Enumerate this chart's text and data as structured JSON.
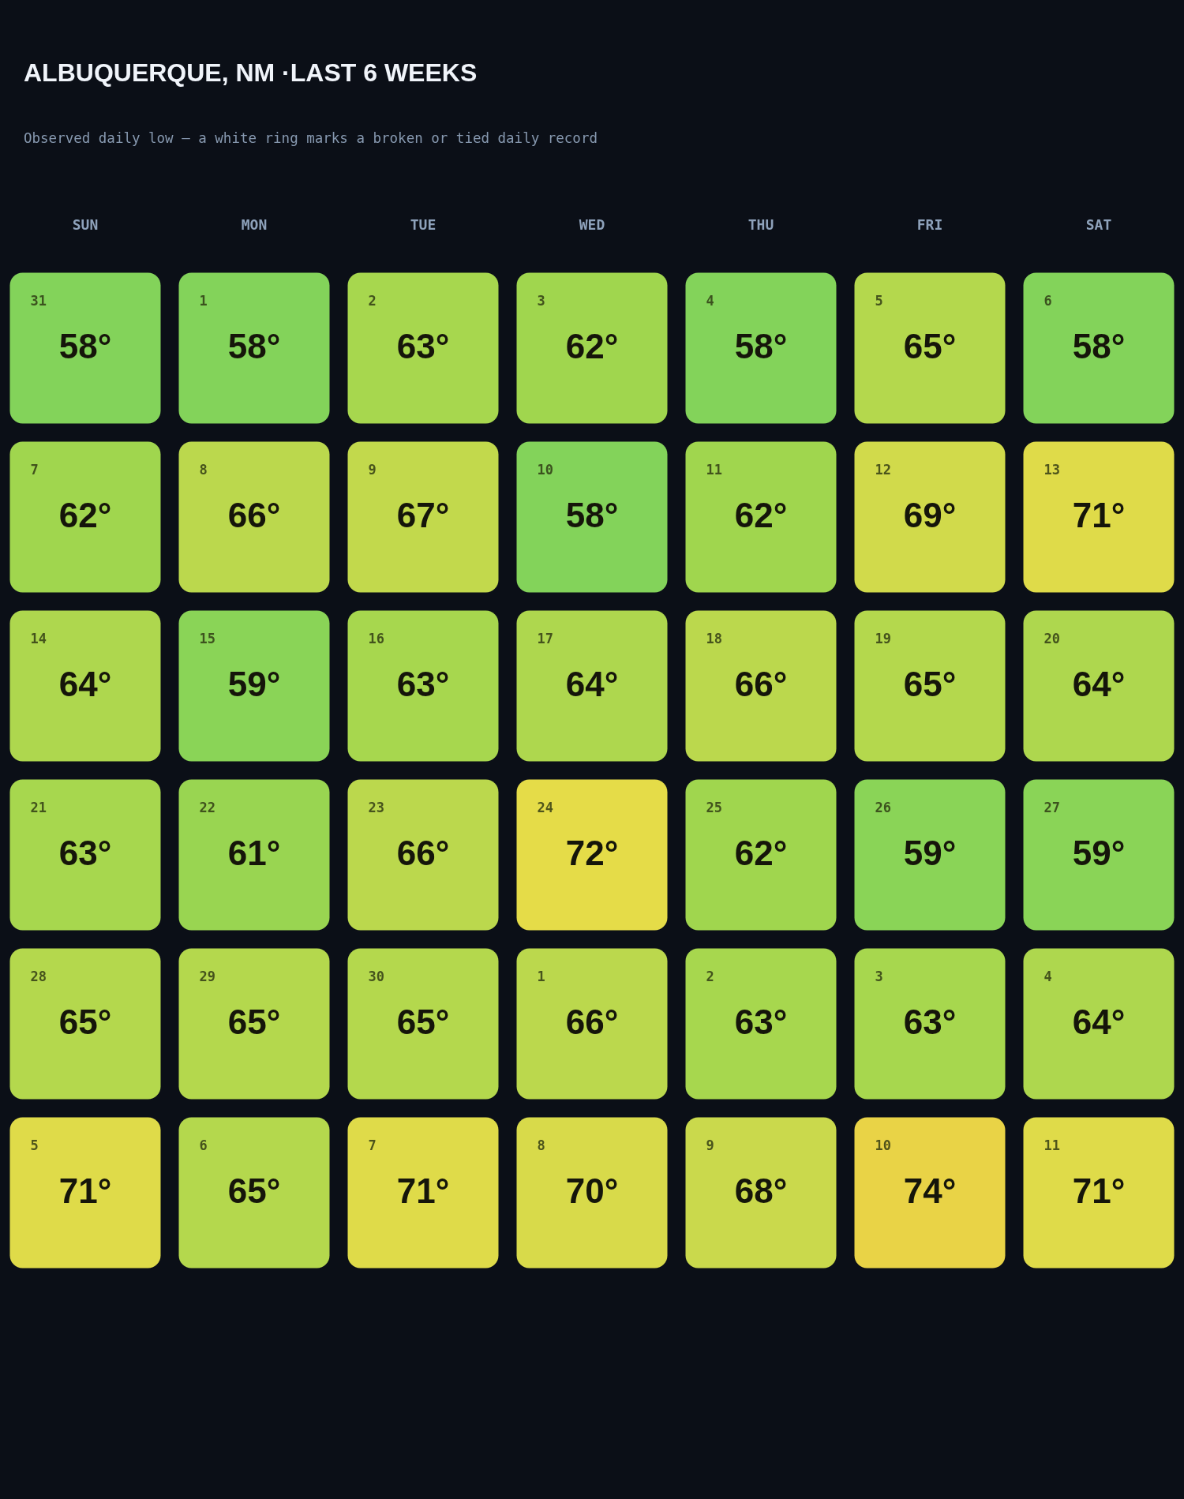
{
  "chart_data": {
    "type": "heatmap",
    "title": "ALBUQUERQUE, NM ·LAST 6 WEEKS",
    "subtitle": "Observed daily low — a white ring marks a broken or tied daily record",
    "categories": [
      "SUN",
      "MON",
      "TUE",
      "WED",
      "THU",
      "FRI",
      "SAT"
    ],
    "y_categories": [
      null,
      null,
      null,
      null,
      null,
      null
    ],
    "cells": [
      [
        58,
        58,
        63,
        62,
        58,
        65,
        58
      ],
      [
        62,
        66,
        67,
        58,
        62,
        69,
        71
      ],
      [
        64,
        59,
        63,
        64,
        66,
        65,
        64
      ],
      [
        63,
        61,
        66,
        72,
        62,
        59,
        59
      ],
      [
        65,
        65,
        65,
        66,
        63,
        63,
        64
      ],
      [
        71,
        65,
        71,
        70,
        68,
        74,
        71
      ]
    ],
    "cell_labels": [
      [
        "58°",
        "58°",
        "63°",
        "62°",
        "58°",
        "65°",
        "58°"
      ],
      [
        "62°",
        "66°",
        "67°",
        "58°",
        "62°",
        "69°",
        "71°"
      ],
      [
        "64°",
        "59°",
        "63°",
        "64°",
        "66°",
        "65°",
        "64°"
      ],
      [
        "63°",
        "61°",
        "66°",
        "72°",
        "62°",
        "59°",
        "59°"
      ],
      [
        "65°",
        "65°",
        "65°",
        "66°",
        "63°",
        "63°",
        "64°"
      ],
      [
        "71°",
        "65°",
        "71°",
        "70°",
        "68°",
        "74°",
        "71°"
      ]
    ],
    "annotations": [
      "31",
      "1",
      "2",
      "3",
      "4",
      "5",
      "6",
      "7",
      "8",
      "9",
      "10",
      "11",
      "12",
      "13",
      "14",
      "15",
      "16",
      "17",
      "18",
      "19",
      "20",
      "21",
      "22",
      "23",
      "24",
      "25",
      "26",
      "27",
      "28",
      "29",
      "30",
      "1",
      "2",
      "3",
      "4",
      "5",
      "6",
      "7",
      "8",
      "9",
      "10",
      "11"
    ]
  }
}
